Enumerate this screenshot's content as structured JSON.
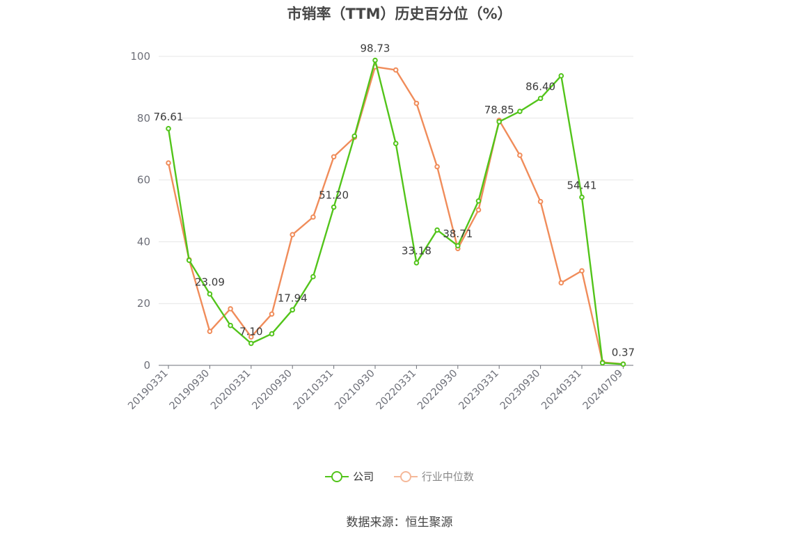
{
  "chart_data": {
    "type": "line",
    "title": "市销率（TTM）历史百分位（%）",
    "x_tick_labels": [
      "20190331",
      "20190930",
      "20200331",
      "20200930",
      "20210331",
      "20210930",
      "20220331",
      "20220930",
      "20230331",
      "20230930",
      "20240331",
      "20240709"
    ],
    "ylim": [
      0,
      100
    ],
    "y_ticks": [
      0,
      20,
      40,
      60,
      80,
      100
    ],
    "grid": true,
    "legend_position": "bottom",
    "series": [
      {
        "name": "公司",
        "color": "#52c41a",
        "values": [
          76.61,
          34.0,
          23.09,
          12.9,
          7.1,
          10.2,
          17.94,
          28.7,
          51.2,
          74.2,
          98.73,
          71.8,
          33.18,
          43.8,
          38.71,
          53.2,
          78.85,
          82.2,
          86.4,
          93.7,
          54.41,
          0.8,
          0.37
        ],
        "labels": {
          "0": "76.61",
          "2": "23.09",
          "4": "7.10",
          "6": "17.94",
          "8": "51.20",
          "10": "98.73",
          "12": "33.18",
          "14": "38.71",
          "16": "78.85",
          "18": "86.40",
          "20": "54.41",
          "22": "0.37"
        }
      },
      {
        "name": "行业中位数",
        "color": "#f08c5a",
        "legend_color": "#f5b899",
        "values": [
          65.5,
          34.2,
          11.0,
          18.3,
          9.2,
          16.6,
          42.3,
          48.0,
          67.5,
          73.8,
          96.6,
          95.6,
          84.8,
          64.3,
          37.8,
          50.3,
          79.3,
          68.0,
          53.0,
          26.7,
          30.6,
          1.0,
          0.4
        ]
      }
    ]
  },
  "source": "数据来源：恒生聚源"
}
